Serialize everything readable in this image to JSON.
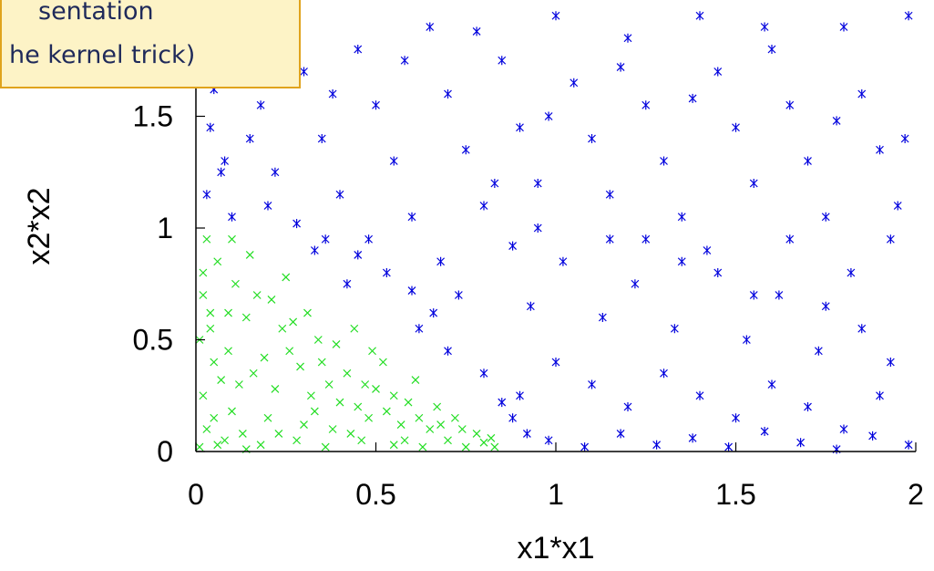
{
  "callout": {
    "line1": "sentation",
    "line2": "he kernel trick)"
  },
  "colors": {
    "axis": "#000000",
    "class_outer": "#0000dd",
    "class_inner": "#22dd22",
    "callout_bg": "#fdf3c6",
    "callout_border": "#e0a31c",
    "callout_text": "#1f2a5a"
  },
  "chart_data": {
    "type": "scatter",
    "xlabel": "x1*x1",
    "ylabel": "x2*x2",
    "xlim": [
      0,
      2
    ],
    "ylim": [
      0,
      2
    ],
    "xticks": [
      "0",
      "0.5",
      "1",
      "1.5",
      "2"
    ],
    "yticks": [
      "0",
      "0.5",
      "1",
      "1.5"
    ],
    "grid": false,
    "series": [
      {
        "marker": "asterisk",
        "color": "#0000dd",
        "points": [
          [
            0.02,
            1.95
          ],
          [
            0.05,
            1.62
          ],
          [
            0.08,
            1.3
          ],
          [
            0.12,
            1.85
          ],
          [
            0.18,
            1.55
          ],
          [
            0.22,
            1.25
          ],
          [
            0.03,
            1.15
          ],
          [
            0.1,
            1.05
          ],
          [
            0.25,
            1.92
          ],
          [
            0.3,
            1.7
          ],
          [
            0.35,
            1.4
          ],
          [
            0.4,
            1.15
          ],
          [
            0.28,
            1.02
          ],
          [
            0.45,
            1.8
          ],
          [
            0.5,
            1.55
          ],
          [
            0.55,
            1.3
          ],
          [
            0.6,
            1.05
          ],
          [
            0.48,
            0.95
          ],
          [
            0.65,
            1.9
          ],
          [
            0.7,
            1.6
          ],
          [
            0.75,
            1.35
          ],
          [
            0.8,
            1.1
          ],
          [
            0.68,
            0.85
          ],
          [
            0.85,
            1.75
          ],
          [
            0.9,
            1.45
          ],
          [
            0.95,
            1.2
          ],
          [
            0.88,
            0.92
          ],
          [
            1.0,
            1.95
          ],
          [
            1.05,
            1.65
          ],
          [
            1.1,
            1.4
          ],
          [
            1.15,
            1.15
          ],
          [
            1.02,
            0.85
          ],
          [
            1.2,
            1.85
          ],
          [
            1.25,
            1.55
          ],
          [
            1.3,
            1.3
          ],
          [
            1.35,
            1.05
          ],
          [
            1.22,
            0.75
          ],
          [
            1.4,
            1.95
          ],
          [
            1.45,
            1.7
          ],
          [
            1.5,
            1.45
          ],
          [
            1.55,
            1.2
          ],
          [
            1.42,
            0.9
          ],
          [
            1.6,
            1.8
          ],
          [
            1.65,
            1.55
          ],
          [
            1.7,
            1.3
          ],
          [
            1.75,
            1.05
          ],
          [
            1.62,
            0.7
          ],
          [
            1.8,
            1.9
          ],
          [
            1.85,
            1.6
          ],
          [
            1.9,
            1.35
          ],
          [
            1.95,
            1.1
          ],
          [
            1.82,
            0.8
          ],
          [
            1.98,
            1.95
          ],
          [
            1.97,
            1.4
          ],
          [
            1.93,
            0.95
          ],
          [
            0.15,
            1.4
          ],
          [
            0.38,
            1.6
          ],
          [
            0.58,
            1.75
          ],
          [
            0.78,
            1.88
          ],
          [
            0.98,
            1.5
          ],
          [
            1.18,
            1.72
          ],
          [
            1.38,
            1.58
          ],
          [
            1.58,
            1.9
          ],
          [
            1.78,
            1.48
          ],
          [
            0.33,
            0.9
          ],
          [
            0.53,
            0.8
          ],
          [
            0.73,
            0.7
          ],
          [
            0.93,
            0.65
          ],
          [
            1.13,
            0.6
          ],
          [
            1.33,
            0.55
          ],
          [
            1.53,
            0.5
          ],
          [
            1.73,
            0.45
          ],
          [
            1.93,
            0.4
          ],
          [
            0.7,
            0.45
          ],
          [
            0.8,
            0.35
          ],
          [
            0.9,
            0.25
          ],
          [
            1.0,
            0.4
          ],
          [
            1.1,
            0.3
          ],
          [
            1.2,
            0.2
          ],
          [
            1.3,
            0.35
          ],
          [
            1.4,
            0.25
          ],
          [
            1.5,
            0.15
          ],
          [
            1.6,
            0.3
          ],
          [
            1.7,
            0.2
          ],
          [
            1.8,
            0.1
          ],
          [
            1.9,
            0.25
          ],
          [
            0.98,
            0.05
          ],
          [
            1.08,
            0.02
          ],
          [
            1.18,
            0.08
          ],
          [
            1.28,
            0.03
          ],
          [
            1.38,
            0.06
          ],
          [
            1.48,
            0.02
          ],
          [
            1.58,
            0.09
          ],
          [
            1.68,
            0.04
          ],
          [
            1.78,
            0.01
          ],
          [
            1.88,
            0.07
          ],
          [
            1.98,
            0.03
          ],
          [
            0.88,
            0.15
          ],
          [
            0.92,
            0.08
          ],
          [
            0.85,
            0.22
          ],
          [
            0.62,
            0.55
          ],
          [
            0.66,
            0.62
          ],
          [
            0.6,
            0.72
          ],
          [
            0.45,
            0.88
          ],
          [
            0.42,
            0.75
          ],
          [
            0.36,
            0.95
          ],
          [
            0.2,
            1.1
          ],
          [
            0.07,
            1.25
          ],
          [
            0.04,
            1.45
          ],
          [
            0.13,
            1.7
          ],
          [
            1.25,
            0.95
          ],
          [
            1.45,
            0.8
          ],
          [
            1.65,
            0.95
          ],
          [
            1.85,
            0.55
          ],
          [
            1.75,
            0.65
          ],
          [
            1.55,
            0.7
          ],
          [
            1.35,
            0.85
          ],
          [
            1.15,
            0.95
          ],
          [
            0.95,
            1.0
          ],
          [
            0.83,
            1.2
          ]
        ]
      },
      {
        "marker": "cross",
        "color": "#22dd22",
        "points": [
          [
            0.01,
            0.02
          ],
          [
            0.03,
            0.1
          ],
          [
            0.02,
            0.25
          ],
          [
            0.05,
            0.4
          ],
          [
            0.04,
            0.55
          ],
          [
            0.02,
            0.7
          ],
          [
            0.06,
            0.85
          ],
          [
            0.03,
            0.95
          ],
          [
            0.08,
            0.05
          ],
          [
            0.1,
            0.18
          ],
          [
            0.12,
            0.3
          ],
          [
            0.09,
            0.45
          ],
          [
            0.14,
            0.6
          ],
          [
            0.11,
            0.75
          ],
          [
            0.15,
            0.88
          ],
          [
            0.18,
            0.03
          ],
          [
            0.2,
            0.15
          ],
          [
            0.22,
            0.28
          ],
          [
            0.19,
            0.42
          ],
          [
            0.24,
            0.55
          ],
          [
            0.21,
            0.68
          ],
          [
            0.25,
            0.78
          ],
          [
            0.28,
            0.05
          ],
          [
            0.3,
            0.12
          ],
          [
            0.32,
            0.25
          ],
          [
            0.29,
            0.38
          ],
          [
            0.34,
            0.5
          ],
          [
            0.31,
            0.62
          ],
          [
            0.36,
            0.02
          ],
          [
            0.38,
            0.1
          ],
          [
            0.4,
            0.22
          ],
          [
            0.42,
            0.35
          ],
          [
            0.39,
            0.48
          ],
          [
            0.44,
            0.55
          ],
          [
            0.46,
            0.05
          ],
          [
            0.48,
            0.15
          ],
          [
            0.5,
            0.28
          ],
          [
            0.52,
            0.4
          ],
          [
            0.49,
            0.45
          ],
          [
            0.55,
            0.03
          ],
          [
            0.57,
            0.12
          ],
          [
            0.59,
            0.22
          ],
          [
            0.61,
            0.32
          ],
          [
            0.63,
            0.02
          ],
          [
            0.65,
            0.1
          ],
          [
            0.67,
            0.2
          ],
          [
            0.7,
            0.05
          ],
          [
            0.72,
            0.15
          ],
          [
            0.75,
            0.02
          ],
          [
            0.78,
            0.08
          ],
          [
            0.8,
            0.04
          ],
          [
            0.83,
            0.02
          ],
          [
            0.05,
            0.15
          ],
          [
            0.07,
            0.32
          ],
          [
            0.09,
            0.62
          ],
          [
            0.13,
            0.08
          ],
          [
            0.16,
            0.35
          ],
          [
            0.23,
            0.08
          ],
          [
            0.26,
            0.45
          ],
          [
            0.33,
            0.18
          ],
          [
            0.35,
            0.4
          ],
          [
            0.43,
            0.08
          ],
          [
            0.47,
            0.3
          ],
          [
            0.53,
            0.18
          ],
          [
            0.58,
            0.05
          ],
          [
            0.68,
            0.12
          ],
          [
            0.01,
            0.5
          ],
          [
            0.02,
            0.8
          ],
          [
            0.04,
            0.62
          ],
          [
            0.1,
            0.95
          ],
          [
            0.17,
            0.7
          ],
          [
            0.27,
            0.58
          ],
          [
            0.37,
            0.3
          ],
          [
            0.45,
            0.2
          ],
          [
            0.55,
            0.25
          ],
          [
            0.62,
            0.15
          ],
          [
            0.74,
            0.1
          ],
          [
            0.82,
            0.06
          ],
          [
            0.06,
            0.03
          ],
          [
            0.14,
            0.01
          ]
        ]
      }
    ]
  }
}
